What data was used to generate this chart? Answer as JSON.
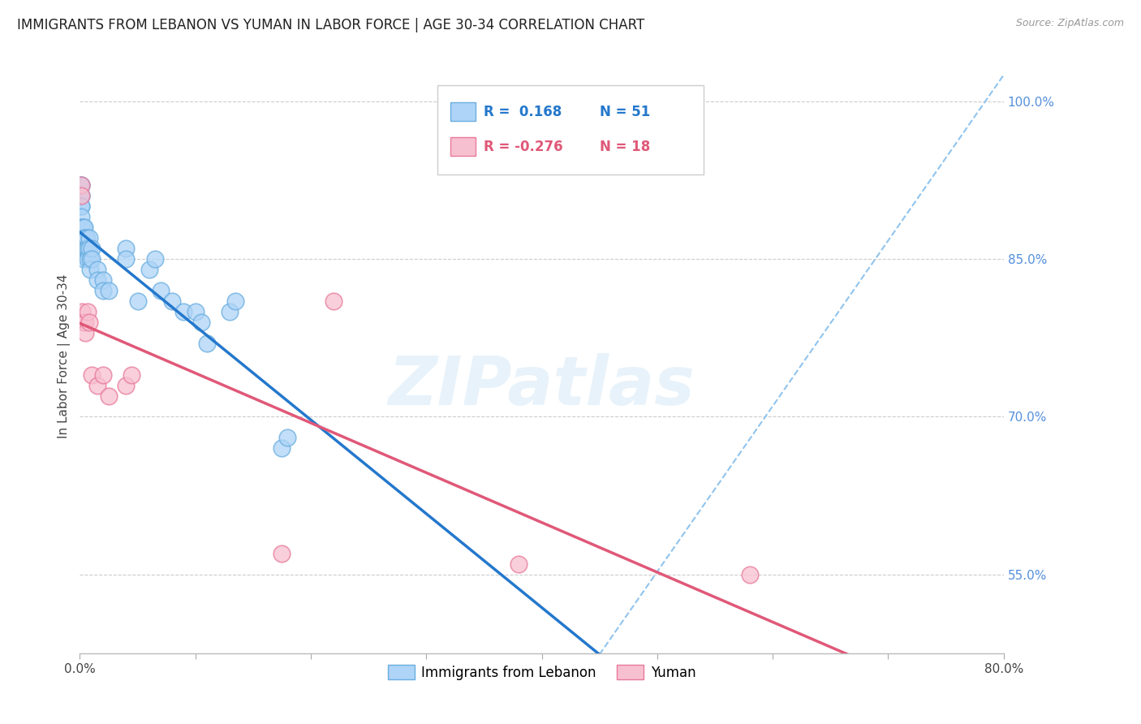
{
  "title": "IMMIGRANTS FROM LEBANON VS YUMAN IN LABOR FORCE | AGE 30-34 CORRELATION CHART",
  "source": "Source: ZipAtlas.com",
  "ylabel": "In Labor Force | Age 30-34",
  "xlim": [
    0.0,
    0.8
  ],
  "ylim": [
    0.475,
    1.04
  ],
  "xticks": [
    0.0,
    0.1,
    0.2,
    0.3,
    0.4,
    0.5,
    0.6,
    0.7,
    0.8
  ],
  "xticklabels": [
    "0.0%",
    "",
    "",
    "",
    "",
    "",
    "",
    "",
    "80.0%"
  ],
  "yticks_right": [
    0.55,
    0.7,
    0.85,
    1.0
  ],
  "ytick_right_labels": [
    "55.0%",
    "70.0%",
    "85.0%",
    "100.0%"
  ],
  "grid_color": "#cccccc",
  "background_color": "#ffffff",
  "lebanon_color": "#aed4f7",
  "yuman_color": "#f7c0d0",
  "lebanon_edge_color": "#6aaee0",
  "yuman_edge_color": "#e87a9a",
  "trend_blue_color": "#2478cc",
  "trend_pink_color": "#e05878",
  "trend_dashed_color": "#90c4ee",
  "R_lebanon": 0.168,
  "N_lebanon": 51,
  "R_yuman": -0.276,
  "N_yuman": 18,
  "legend_label_lebanon": "Immigrants from Lebanon",
  "legend_label_yuman": "Yuman",
  "watermark": "ZIPatlas",
  "lebanon_x": [
    0.001,
    0.001,
    0.001,
    0.001,
    0.001,
    0.001,
    0.001,
    0.001,
    0.001,
    0.001,
    0.002,
    0.002,
    0.002,
    0.003,
    0.003,
    0.003,
    0.004,
    0.004,
    0.004,
    0.005,
    0.005,
    0.006,
    0.006,
    0.007,
    0.007,
    0.008,
    0.008,
    0.009,
    0.009,
    0.01,
    0.01,
    0.015,
    0.015,
    0.02,
    0.02,
    0.025,
    0.04,
    0.04,
    0.05,
    0.06,
    0.065,
    0.07,
    0.08,
    0.09,
    0.1,
    0.105,
    0.11,
    0.13,
    0.135,
    0.175,
    0.18
  ],
  "lebanon_y": [
    0.91,
    0.92,
    0.92,
    0.91,
    0.9,
    0.9,
    0.89,
    0.88,
    0.87,
    0.86,
    0.88,
    0.87,
    0.86,
    0.88,
    0.87,
    0.85,
    0.88,
    0.87,
    0.86,
    0.87,
    0.86,
    0.87,
    0.86,
    0.86,
    0.85,
    0.87,
    0.86,
    0.85,
    0.84,
    0.86,
    0.85,
    0.84,
    0.83,
    0.83,
    0.82,
    0.82,
    0.86,
    0.85,
    0.81,
    0.84,
    0.85,
    0.82,
    0.81,
    0.8,
    0.8,
    0.79,
    0.77,
    0.8,
    0.81,
    0.67,
    0.68
  ],
  "yuman_x": [
    0.001,
    0.001,
    0.002,
    0.003,
    0.005,
    0.005,
    0.007,
    0.008,
    0.01,
    0.015,
    0.02,
    0.025,
    0.04,
    0.045,
    0.175,
    0.22,
    0.38,
    0.58
  ],
  "yuman_y": [
    0.92,
    0.91,
    0.8,
    0.79,
    0.79,
    0.78,
    0.8,
    0.79,
    0.74,
    0.73,
    0.74,
    0.72,
    0.73,
    0.74,
    0.57,
    0.81,
    0.56,
    0.55
  ]
}
